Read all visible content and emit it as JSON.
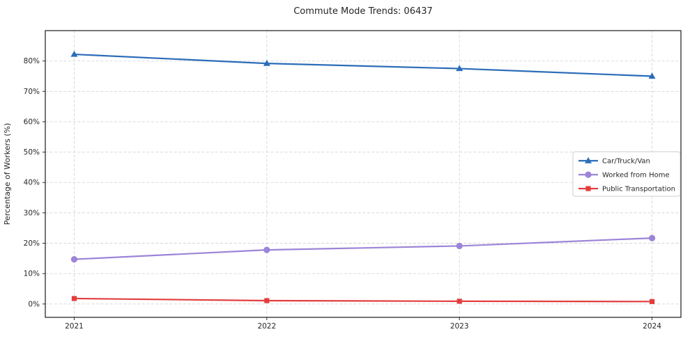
{
  "chart_data": {
    "type": "line",
    "title": "Commute Mode Trends: 06437",
    "xlabel": "",
    "ylabel": "Percentage of Workers (%)",
    "x": [
      2021,
      2022,
      2023,
      2024
    ],
    "x_tick_labels": [
      "2021",
      "2022",
      "2023",
      "2024"
    ],
    "y_ticks": [
      0,
      10,
      20,
      30,
      40,
      50,
      60,
      70,
      80
    ],
    "y_tick_suffix": "%",
    "xlim": [
      2020.85,
      2024.15
    ],
    "ylim": [
      -4.4,
      90
    ],
    "grid": true,
    "grid_style": "dashed",
    "legend_position": "center-right",
    "series": [
      {
        "name": "Car/Truck/Van",
        "marker": "triangle",
        "color": "#2b6cb8",
        "values": [
          82.2,
          79.2,
          77.5,
          75.0
        ]
      },
      {
        "name": "Worked from Home",
        "marker": "circle",
        "color": "#9c84d8",
        "values": [
          14.7,
          17.8,
          19.1,
          21.7
        ]
      },
      {
        "name": "Public Transportation",
        "marker": "square",
        "color": "#e23d3d",
        "values": [
          1.8,
          1.1,
          0.9,
          0.8
        ]
      }
    ]
  }
}
